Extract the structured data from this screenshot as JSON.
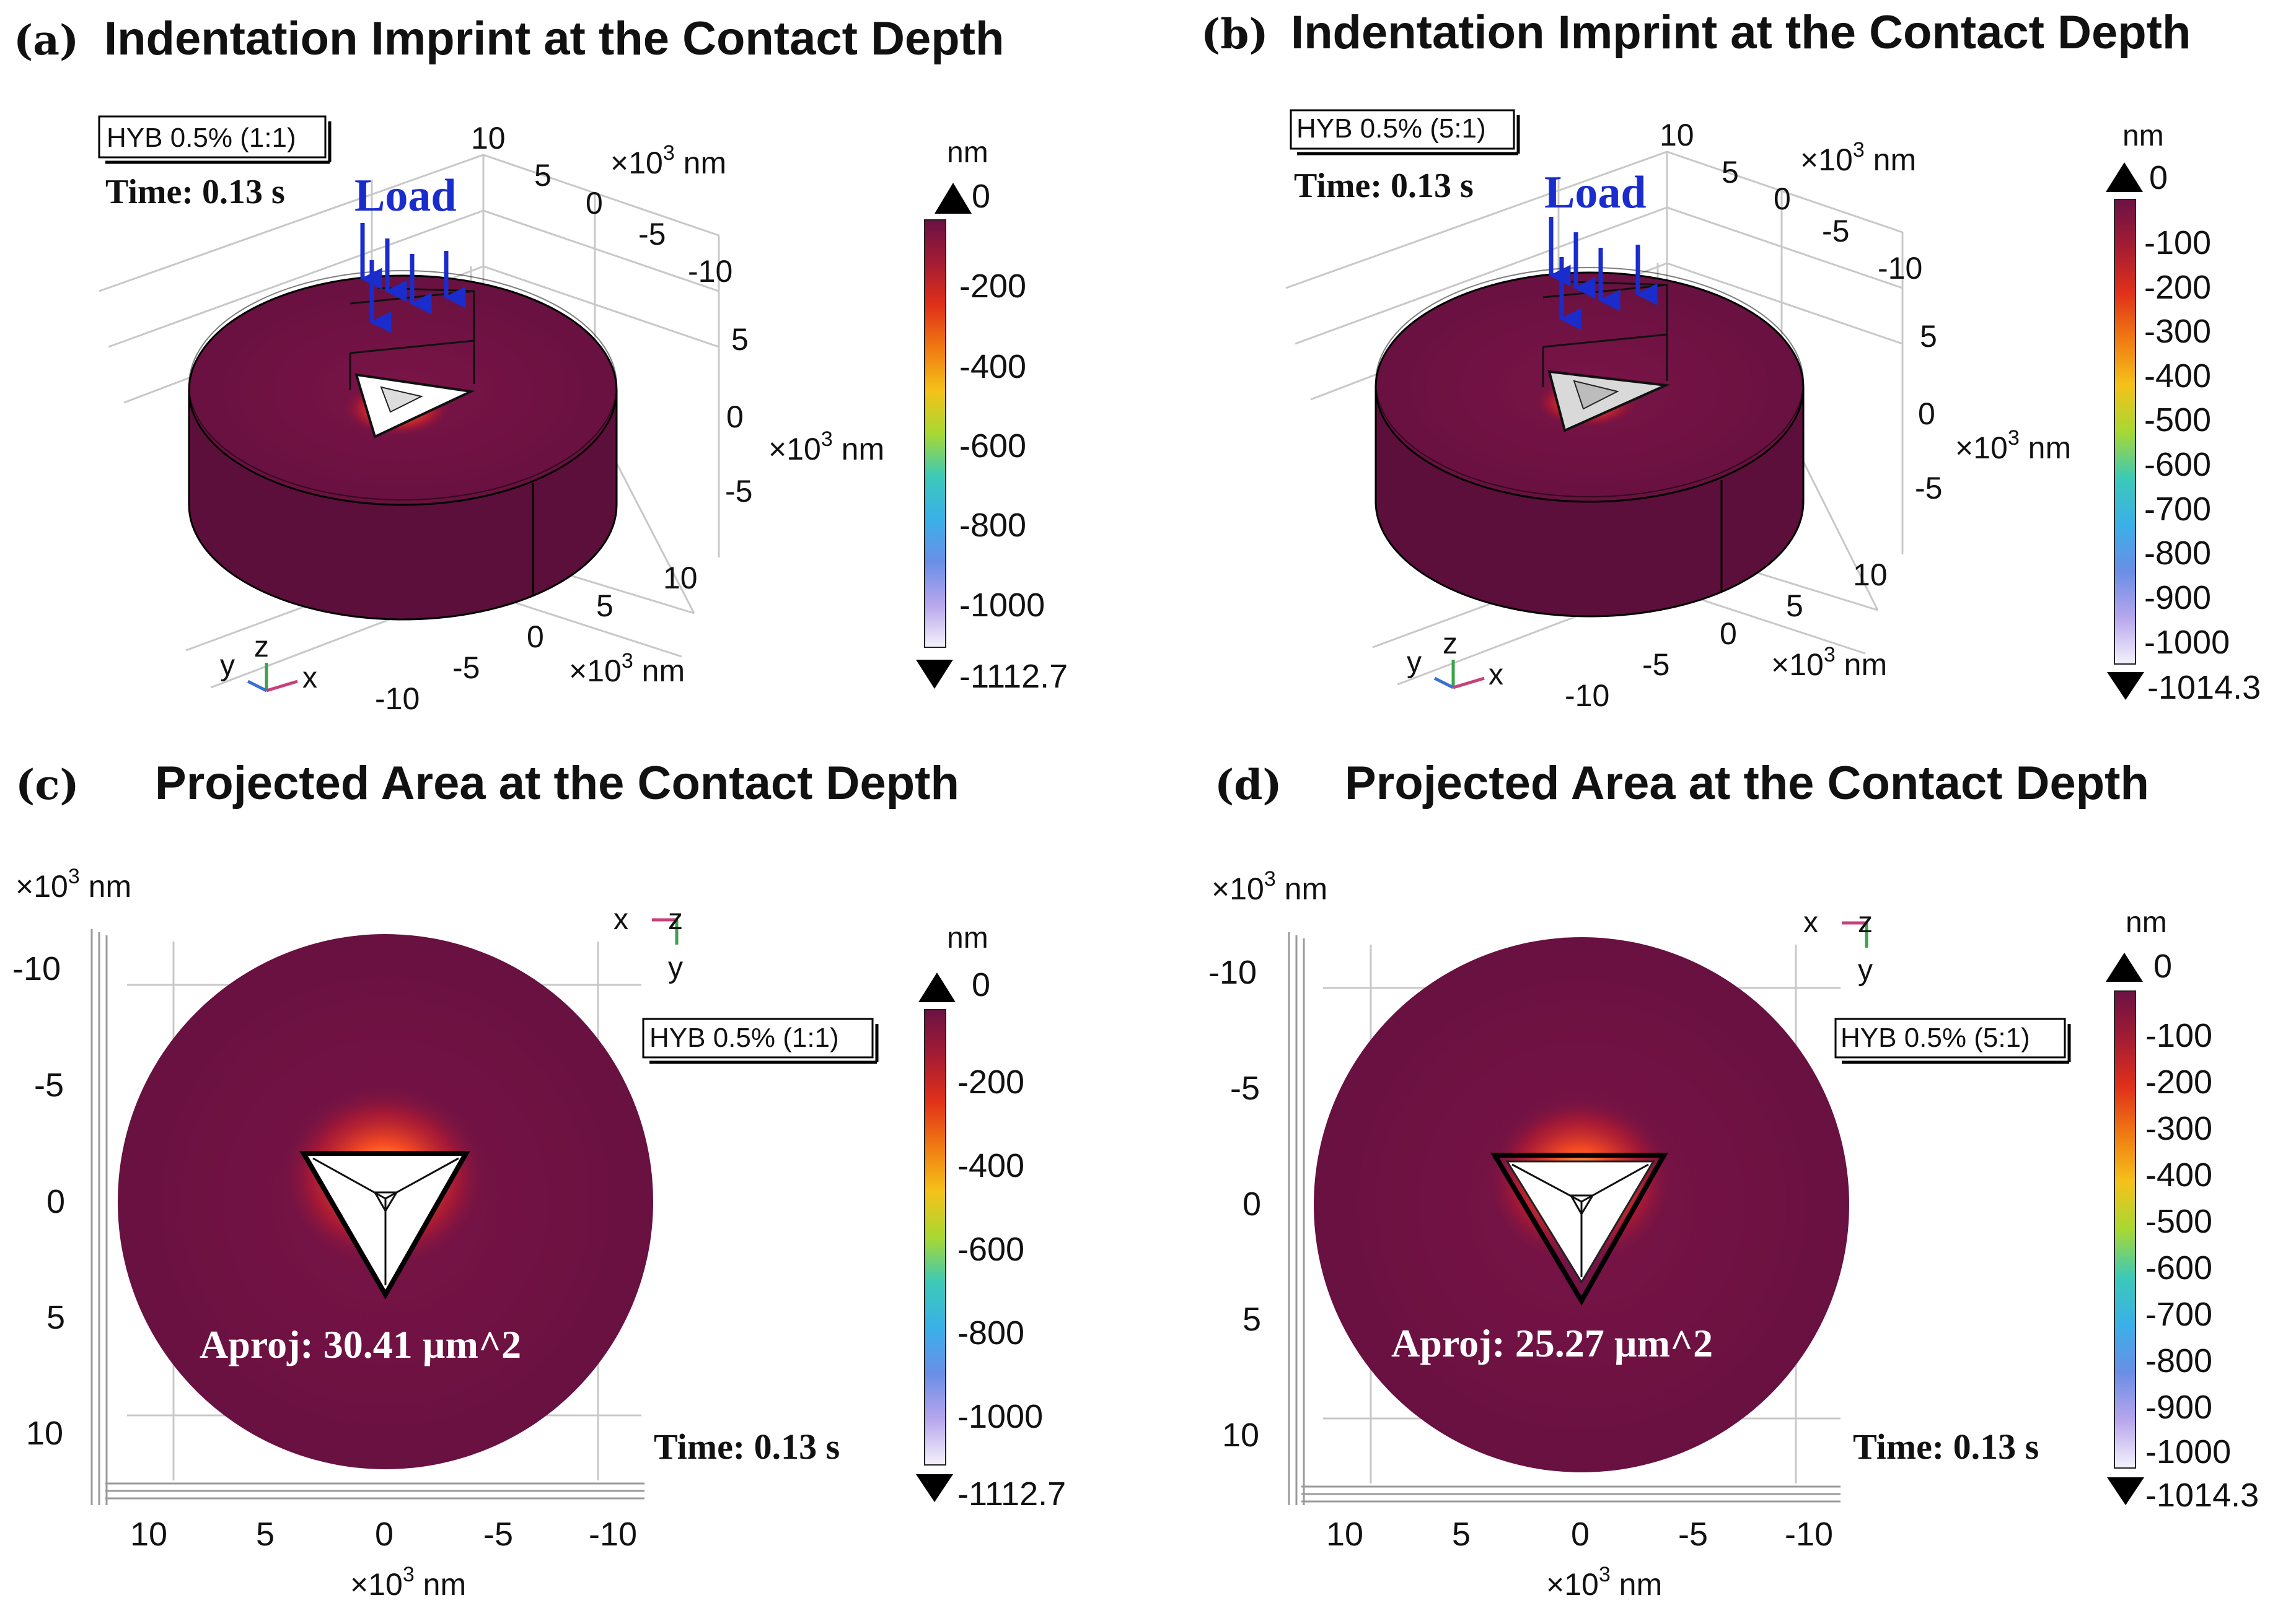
{
  "colors": {
    "surface": "#6b1244",
    "surface_side": "#5c0f3a",
    "hot": "#ff3a1a",
    "load_arrow": "#1a2ccc",
    "axis_x": "#c8407a",
    "axis_y": "#3aa24a",
    "axis_z": "#3a6fd4",
    "colorbar_stops": [
      "#6b1244",
      "#a31c33",
      "#e0301a",
      "#f07a12",
      "#f4c21a",
      "#a8d832",
      "#3cc9b8",
      "#3ab0e8",
      "#6a8ee6",
      "#b7a6ec",
      "#f4f2fb"
    ]
  },
  "chart_data": [
    {
      "type": "surface-3d",
      "panel": "(a)",
      "title": "Indentation Imprint at the Contact Depth",
      "legend": "HYB 0.5% (1:1)",
      "time": "Time: 0.13 s",
      "load_label": "Load",
      "axis_unit": "×10",
      "axis_unit_exp": "3",
      "axis_unit_suffix": " nm",
      "ticks_back_x": [
        "10",
        "5",
        "0",
        "-5",
        "-10"
      ],
      "ticks_right_z": [
        "5",
        "0",
        "-5"
      ],
      "ticks_front_x": [
        "10",
        "5",
        "0",
        "-5",
        "-10"
      ],
      "axes_triad": {
        "y": "y",
        "z": "z",
        "x": "x"
      },
      "colorbar": {
        "unit": "nm",
        "max": "0",
        "min": "-1112.7",
        "ticks": [
          "-200",
          "-400",
          "-600",
          "-800",
          "-1000"
        ]
      }
    },
    {
      "type": "surface-3d",
      "panel": "(b)",
      "title": "Indentation Imprint at the Contact Depth",
      "legend": "HYB 0.5% (5:1)",
      "time": "Time: 0.13 s",
      "load_label": "Load",
      "axis_unit": "×10",
      "axis_unit_exp": "3",
      "axis_unit_suffix": " nm",
      "ticks_back_x": [
        "10",
        "5",
        "0",
        "-5",
        "-10"
      ],
      "ticks_right_z": [
        "5",
        "0",
        "-5"
      ],
      "ticks_front_x": [
        "10",
        "5",
        "0",
        "-5",
        "-10"
      ],
      "axes_triad": {
        "y": "y",
        "z": "z",
        "x": "x"
      },
      "colorbar": {
        "unit": "nm",
        "max": "0",
        "min": "-1014.3",
        "ticks": [
          "-100",
          "-200",
          "-300",
          "-400",
          "-500",
          "-600",
          "-700",
          "-800",
          "-900",
          "-1000"
        ]
      }
    },
    {
      "type": "surface-top",
      "panel": "(c)",
      "title": "Projected Area at the Contact Depth",
      "legend": "HYB 0.5% (1:1)",
      "time": "Time: 0.13 s",
      "aproj": "Aproj: 30.41 µm^2",
      "axis_unit": "×10",
      "axis_unit_exp": "3",
      "axis_unit_suffix": " nm",
      "y_ticks": [
        "-10",
        "-5",
        "0",
        "5",
        "10"
      ],
      "x_ticks": [
        "10",
        "5",
        "0",
        "-5",
        "-10"
      ],
      "axes_triad": {
        "x": "x",
        "z": "z",
        "y": "y"
      },
      "colorbar": {
        "unit": "nm",
        "max": "0",
        "min": "-1112.7",
        "ticks": [
          "-200",
          "-400",
          "-600",
          "-800",
          "-1000"
        ]
      }
    },
    {
      "type": "surface-top",
      "panel": "(d)",
      "title": "Projected Area at the Contact Depth",
      "legend": "HYB 0.5% (5:1)",
      "time": "Time: 0.13 s",
      "aproj": "Aproj: 25.27 µm^2",
      "axis_unit": "×10",
      "axis_unit_exp": "3",
      "axis_unit_suffix": " nm",
      "y_ticks": [
        "-10",
        "-5",
        "0",
        "5",
        "10"
      ],
      "x_ticks": [
        "10",
        "5",
        "0",
        "-5",
        "-10"
      ],
      "axes_triad": {
        "x": "x",
        "z": "z",
        "y": "y"
      },
      "colorbar": {
        "unit": "nm",
        "max": "0",
        "min": "-1014.3",
        "ticks": [
          "-100",
          "-200",
          "-300",
          "-400",
          "-500",
          "-600",
          "-700",
          "-800",
          "-900",
          "-1000"
        ]
      }
    }
  ]
}
